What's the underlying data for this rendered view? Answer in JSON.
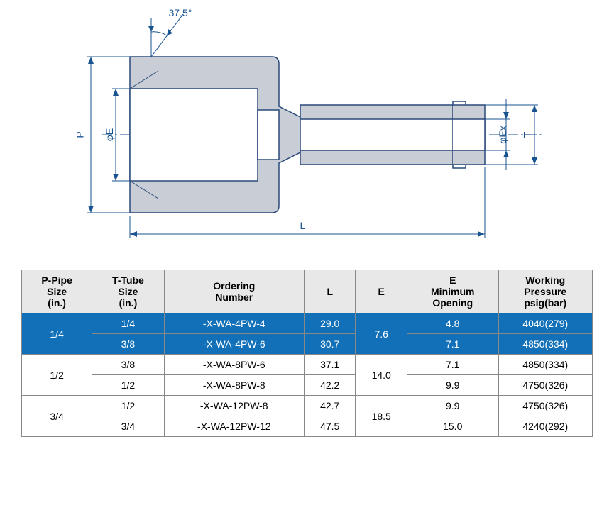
{
  "diagram": {
    "angle_label": "37.5°",
    "labels": {
      "P": "P",
      "phiE": "φE",
      "L": "L",
      "phiEx": "φEx",
      "T": "T"
    },
    "colors": {
      "line": "#1a5490",
      "fill": "#c8cdd6",
      "outline": "#2a4a7a"
    }
  },
  "table": {
    "headers": {
      "pipe": "P-Pipe\nSize\n(in.)",
      "tube": "T-Tube\nSize\n(in.)",
      "order": "Ordering\nNumber",
      "L": "L",
      "E": "E",
      "Emin": "E\nMinimum\nOpening",
      "wp": "Working\nPressure\npsig(bar)"
    },
    "groups": [
      {
        "pipe": "1/4",
        "highlight": true,
        "E": "7.6",
        "rows": [
          {
            "tube": "1/4",
            "order": "-X-WA-4PW-4",
            "L": "29.0",
            "Emin": "4.8",
            "wp": "4040(279)"
          },
          {
            "tube": "3/8",
            "order": "-X-WA-4PW-6",
            "L": "30.7",
            "Emin": "7.1",
            "wp": "4850(334)"
          }
        ]
      },
      {
        "pipe": "1/2",
        "highlight": false,
        "E": "14.0",
        "rows": [
          {
            "tube": "3/8",
            "order": "-X-WA-8PW-6",
            "L": "37.1",
            "Emin": "7.1",
            "wp": "4850(334)"
          },
          {
            "tube": "1/2",
            "order": "-X-WA-8PW-8",
            "L": "42.2",
            "Emin": "9.9",
            "wp": "4750(326)"
          }
        ]
      },
      {
        "pipe": "3/4",
        "highlight": false,
        "E": "18.5",
        "rows": [
          {
            "tube": "1/2",
            "order": "-X-WA-12PW-8",
            "L": "42.7",
            "Emin": "9.9",
            "wp": "4750(326)"
          },
          {
            "tube": "3/4",
            "order": "-X-WA-12PW-12",
            "L": "47.5",
            "Emin": "15.0",
            "wp": "4240(292)"
          }
        ]
      }
    ]
  }
}
